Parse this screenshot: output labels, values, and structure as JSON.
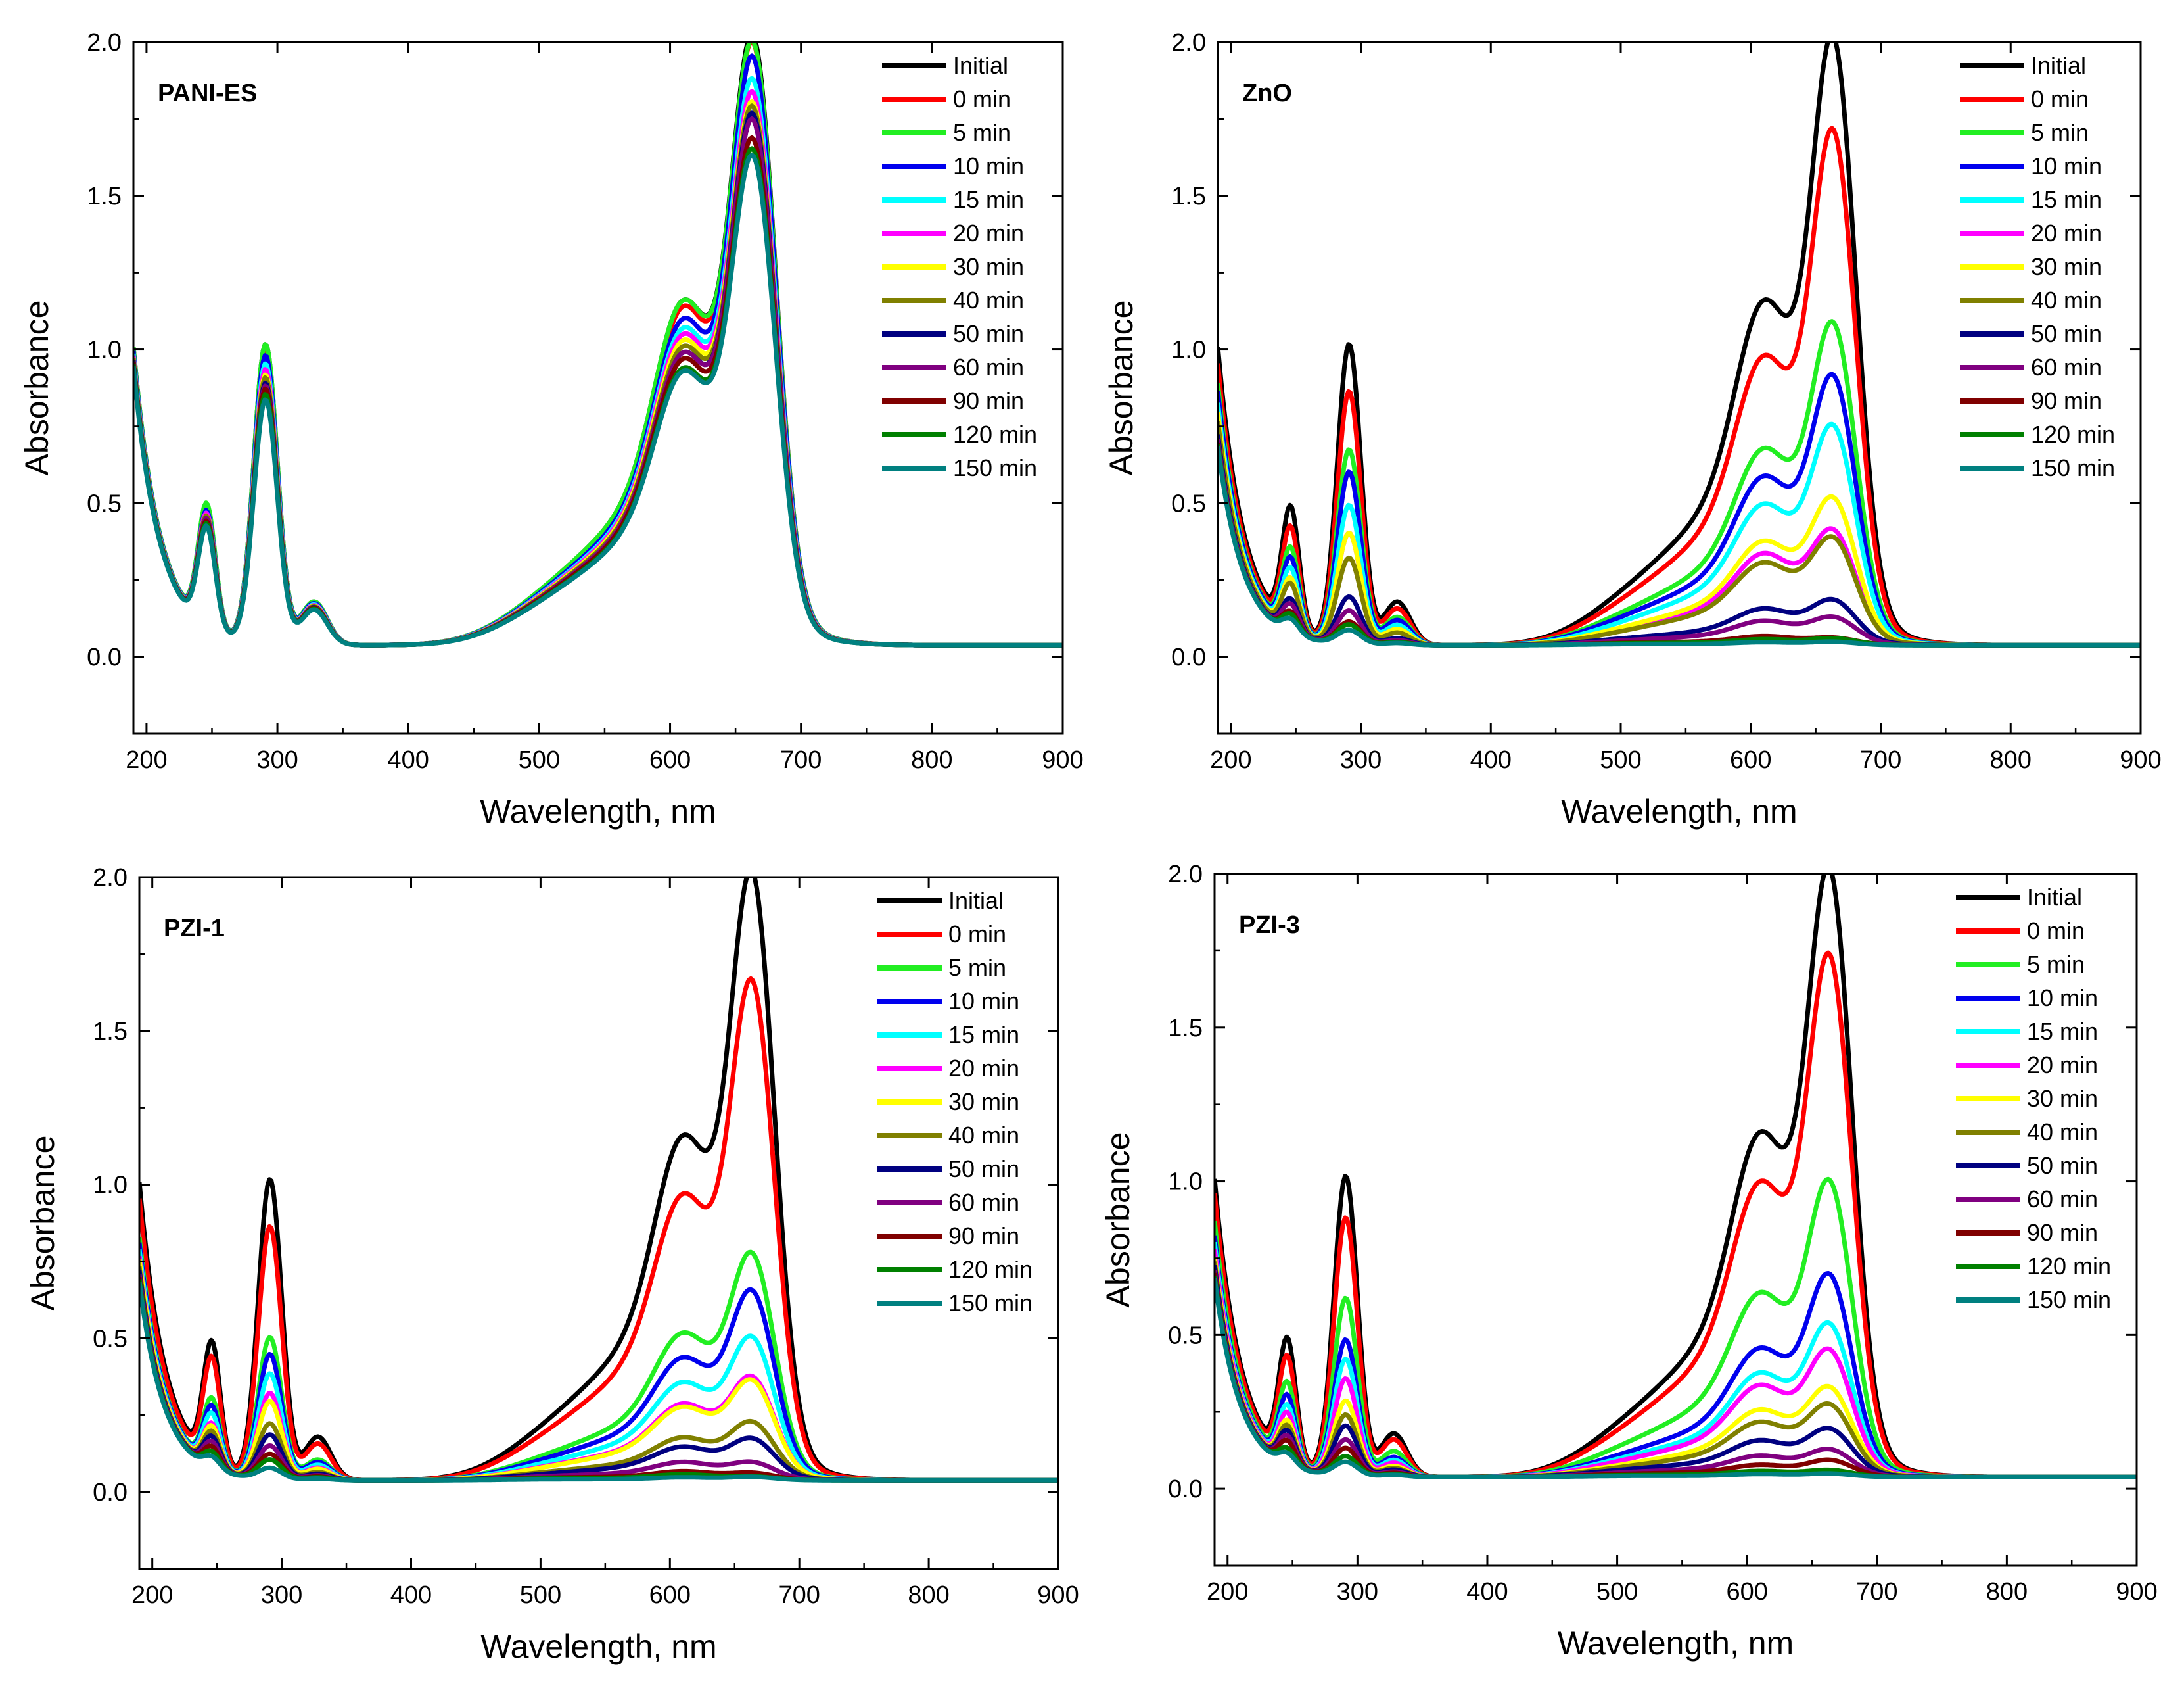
{
  "legend_labels": [
    "Initial",
    "0 min",
    "5 min",
    "10 min",
    "15 min",
    "20 min",
    "30 min",
    "40 min",
    "50 min",
    "60 min",
    "90 min",
    "120 min",
    "150 min"
  ],
  "series_colors": [
    "#000000",
    "#ff0000",
    "#22ee22",
    "#0000ee",
    "#00ffff",
    "#ff00ff",
    "#ffff00",
    "#808000",
    "#000080",
    "#800080",
    "#800000",
    "#008000",
    "#008080"
  ],
  "chart_data": [
    {
      "type": "line",
      "title": "PANI-ES",
      "xlabel": "Wavelength, nm",
      "ylabel": "Absorbance",
      "xlim": [
        190,
        900
      ],
      "ylim": [
        -0.25,
        2.0
      ],
      "xticks": [
        "200",
        "300",
        "400",
        "500",
        "600",
        "700",
        "800",
        "900"
      ],
      "yticks": [
        "0.0",
        "0.5",
        "1.0",
        "1.5",
        "2.0"
      ],
      "legend_position": "top-right",
      "series_peaks": [
        {
          "name": "Initial",
          "a245": 0.5,
          "a290": 1.08,
          "a610": 1.12,
          "a665": 1.83
        },
        {
          "name": "0 min",
          "a245": 0.49,
          "a290": 1.06,
          "a610": 1.1,
          "a665": 1.81
        },
        {
          "name": "5 min",
          "a245": 0.51,
          "a290": 1.08,
          "a610": 1.12,
          "a665": 1.81
        },
        {
          "name": "10 min",
          "a245": 0.48,
          "a290": 1.04,
          "a610": 1.06,
          "a665": 1.77
        },
        {
          "name": "15 min",
          "a245": 0.47,
          "a290": 1.01,
          "a610": 1.03,
          "a665": 1.7
        },
        {
          "name": "20 min",
          "a245": 0.47,
          "a290": 0.99,
          "a610": 1.01,
          "a665": 1.66
        },
        {
          "name": "30 min",
          "a245": 0.46,
          "a290": 0.97,
          "a610": 0.99,
          "a665": 1.63
        },
        {
          "name": "40 min",
          "a245": 0.46,
          "a290": 0.96,
          "a610": 0.97,
          "a665": 1.62
        },
        {
          "name": "50 min",
          "a245": 0.45,
          "a290": 0.94,
          "a610": 0.95,
          "a665": 1.6
        },
        {
          "name": "60 min",
          "a245": 0.45,
          "a290": 0.93,
          "a610": 0.95,
          "a665": 1.58
        },
        {
          "name": "90 min",
          "a245": 0.44,
          "a290": 0.92,
          "a610": 0.93,
          "a665": 1.52
        },
        {
          "name": "120 min",
          "a245": 0.43,
          "a290": 0.9,
          "a610": 0.9,
          "a665": 1.49
        },
        {
          "name": "150 min",
          "a245": 0.42,
          "a290": 0.88,
          "a610": 0.89,
          "a665": 1.47
        }
      ]
    },
    {
      "type": "line",
      "title": "ZnO",
      "xlabel": "Wavelength, nm",
      "ylabel": "Absorbance",
      "xlim": [
        190,
        900
      ],
      "ylim": [
        -0.25,
        2.0
      ],
      "xticks": [
        "200",
        "300",
        "400",
        "500",
        "600",
        "700",
        "800",
        "900"
      ],
      "yticks": [
        "0.0",
        "0.5",
        "1.0",
        "1.5",
        "2.0"
      ],
      "legend_position": "top-right",
      "series_peaks": [
        {
          "name": "Initial",
          "a245": 0.5,
          "a290": 1.08,
          "a610": 1.12,
          "a665": 1.83
        },
        {
          "name": "0 min",
          "a245": 0.42,
          "a290": 0.91,
          "a610": 0.94,
          "a665": 1.55
        },
        {
          "name": "5 min",
          "a245": 0.34,
          "a290": 0.7,
          "a610": 0.64,
          "a665": 0.96
        },
        {
          "name": "10 min",
          "a245": 0.3,
          "a290": 0.62,
          "a610": 0.55,
          "a665": 0.8
        },
        {
          "name": "15 min",
          "a245": 0.26,
          "a290": 0.5,
          "a610": 0.46,
          "a665": 0.65
        },
        {
          "name": "20 min",
          "a245": 0.22,
          "a290": 0.4,
          "a610": 0.3,
          "a665": 0.33
        },
        {
          "name": "30 min",
          "a245": 0.22,
          "a290": 0.4,
          "a610": 0.34,
          "a665": 0.43
        },
        {
          "name": "40 min",
          "a245": 0.2,
          "a290": 0.31,
          "a610": 0.27,
          "a665": 0.31
        },
        {
          "name": "50 min",
          "a245": 0.14,
          "a290": 0.17,
          "a610": 0.12,
          "a665": 0.13
        },
        {
          "name": "60 min",
          "a245": 0.12,
          "a290": 0.12,
          "a610": 0.08,
          "a665": 0.08
        },
        {
          "name": "90 min",
          "a245": 0.09,
          "a290": 0.08,
          "a610": 0.03,
          "a665": 0.02
        },
        {
          "name": "120 min",
          "a245": 0.08,
          "a290": 0.07,
          "a610": 0.02,
          "a665": 0.02
        },
        {
          "name": "150 min",
          "a245": 0.06,
          "a290": 0.05,
          "a610": 0.01,
          "a665": 0.01
        }
      ]
    },
    {
      "type": "line",
      "title": "PZI-1",
      "xlabel": "Wavelength, nm",
      "ylabel": "Absorbance",
      "xlim": [
        190,
        900
      ],
      "ylim": [
        -0.25,
        2.0
      ],
      "xticks": [
        "200",
        "300",
        "400",
        "500",
        "600",
        "700",
        "800",
        "900"
      ],
      "yticks": [
        "0.0",
        "0.5",
        "1.0",
        "1.5",
        "2.0"
      ],
      "legend_position": "top-right",
      "series_peaks": [
        {
          "name": "Initial",
          "a245": 0.5,
          "a290": 1.08,
          "a610": 1.12,
          "a665": 1.83
        },
        {
          "name": "0 min",
          "a245": 0.44,
          "a290": 0.91,
          "a610": 0.93,
          "a665": 1.5
        },
        {
          "name": "5 min",
          "a245": 0.28,
          "a290": 0.51,
          "a610": 0.48,
          "a665": 0.67
        },
        {
          "name": "10 min",
          "a245": 0.25,
          "a290": 0.45,
          "a610": 0.4,
          "a665": 0.56
        },
        {
          "name": "15 min",
          "a245": 0.22,
          "a290": 0.38,
          "a610": 0.32,
          "a665": 0.42
        },
        {
          "name": "20 min",
          "a245": 0.18,
          "a290": 0.31,
          "a610": 0.25,
          "a665": 0.3
        },
        {
          "name": "30 min",
          "a245": 0.17,
          "a290": 0.28,
          "a610": 0.24,
          "a665": 0.29
        },
        {
          "name": "40 min",
          "a245": 0.15,
          "a290": 0.2,
          "a610": 0.14,
          "a665": 0.17
        },
        {
          "name": "50 min",
          "a245": 0.13,
          "a290": 0.16,
          "a610": 0.11,
          "a665": 0.12
        },
        {
          "name": "60 min",
          "a245": 0.11,
          "a290": 0.12,
          "a610": 0.06,
          "a665": 0.05
        },
        {
          "name": "90 min",
          "a245": 0.09,
          "a290": 0.09,
          "a610": 0.03,
          "a665": 0.02
        },
        {
          "name": "120 min",
          "a245": 0.07,
          "a290": 0.07,
          "a610": 0.02,
          "a665": 0.01
        },
        {
          "name": "150 min",
          "a245": 0.05,
          "a290": 0.04,
          "a610": 0.01,
          "a665": 0.01
        }
      ]
    },
    {
      "type": "line",
      "title": "PZI-3",
      "xlabel": "Wavelength, nm",
      "ylabel": "Absorbance",
      "xlim": [
        190,
        900
      ],
      "ylim": [
        -0.25,
        2.0
      ],
      "xticks": [
        "200",
        "300",
        "400",
        "500",
        "600",
        "700",
        "800",
        "900"
      ],
      "yticks": [
        "0.0",
        "0.5",
        "1.0",
        "1.5",
        "2.0"
      ],
      "legend_position": "top-right",
      "series_peaks": [
        {
          "name": "Initial",
          "a245": 0.5,
          "a290": 1.08,
          "a610": 1.12,
          "a665": 1.83
        },
        {
          "name": "0 min",
          "a245": 0.43,
          "a290": 0.93,
          "a610": 0.96,
          "a665": 1.57
        },
        {
          "name": "5 min",
          "a245": 0.33,
          "a290": 0.64,
          "a610": 0.6,
          "a665": 0.88
        },
        {
          "name": "10 min",
          "a245": 0.28,
          "a290": 0.49,
          "a610": 0.42,
          "a665": 0.6
        },
        {
          "name": "15 min",
          "a245": 0.24,
          "a290": 0.42,
          "a610": 0.34,
          "a665": 0.45
        },
        {
          "name": "20 min",
          "a245": 0.21,
          "a290": 0.35,
          "a610": 0.3,
          "a665": 0.37
        },
        {
          "name": "30 min",
          "a245": 0.18,
          "a290": 0.27,
          "a610": 0.22,
          "a665": 0.26
        },
        {
          "name": "40 min",
          "a245": 0.16,
          "a290": 0.22,
          "a610": 0.18,
          "a665": 0.21
        },
        {
          "name": "50 min",
          "a245": 0.14,
          "a290": 0.18,
          "a610": 0.12,
          "a665": 0.14
        },
        {
          "name": "60 min",
          "a245": 0.12,
          "a290": 0.13,
          "a610": 0.07,
          "a665": 0.08
        },
        {
          "name": "90 min",
          "a245": 0.1,
          "a290": 0.1,
          "a610": 0.04,
          "a665": 0.05
        },
        {
          "name": "120 min",
          "a245": 0.07,
          "a290": 0.07,
          "a610": 0.02,
          "a665": 0.02
        },
        {
          "name": "150 min",
          "a245": 0.05,
          "a290": 0.05,
          "a610": 0.01,
          "a665": 0.01
        }
      ]
    }
  ]
}
